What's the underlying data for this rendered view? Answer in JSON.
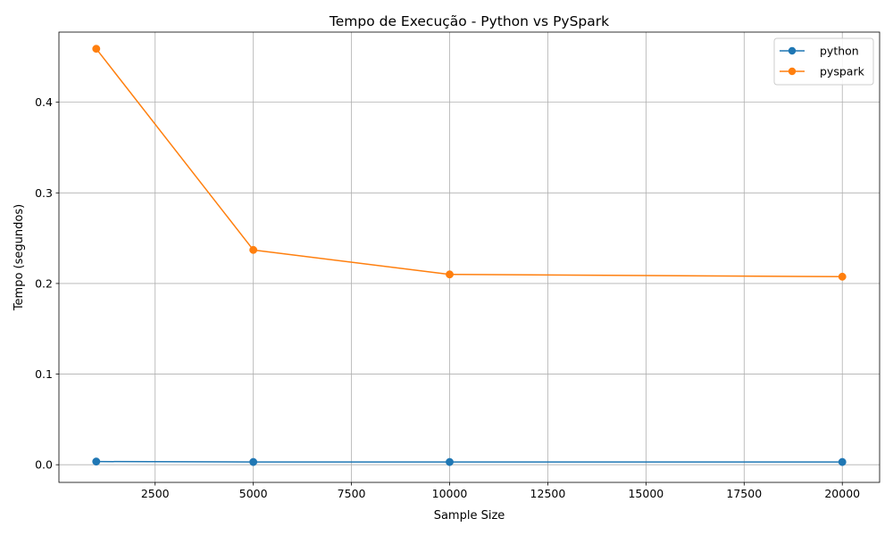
{
  "chart_data": {
    "type": "line",
    "title": "Tempo de Execução - Python vs PySpark",
    "xlabel": "Sample Size",
    "ylabel": "Tempo (segundos)",
    "x": [
      1000,
      5000,
      10000,
      20000
    ],
    "series": [
      {
        "name": "python",
        "color": "#1f77b4",
        "values": [
          0.0035,
          0.003,
          0.003,
          0.003
        ]
      },
      {
        "name": "pyspark",
        "color": "#ff7f0e",
        "values": [
          0.459,
          0.237,
          0.21,
          0.2075
        ]
      }
    ],
    "xlim": [
      50,
      20950
    ],
    "ylim": [
      -0.0195,
      0.4774
    ],
    "xticks": [
      2500,
      5000,
      7500,
      10000,
      12500,
      15000,
      17500,
      20000
    ],
    "xtick_labels": [
      "2500",
      "5000",
      "7500",
      "10000",
      "12500",
      "15000",
      "17500",
      "20000"
    ],
    "yticks": [
      0.0,
      0.1,
      0.2,
      0.3,
      0.4
    ],
    "ytick_labels": [
      "0.0",
      "0.1",
      "0.2",
      "0.3",
      "0.4"
    ],
    "grid": true,
    "legend_position": "top-right",
    "marker": "circle"
  }
}
